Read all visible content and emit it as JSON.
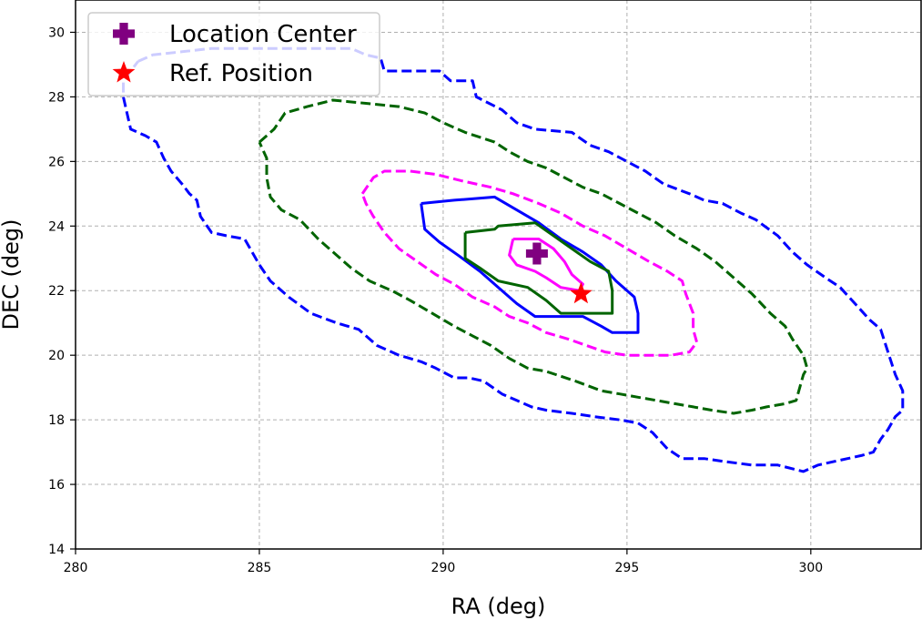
{
  "chart_data": {
    "type": "contour",
    "xlabel": "RA (deg)",
    "ylabel": "DEC (deg)",
    "xlim": [
      280,
      303
    ],
    "ylim": [
      14,
      31
    ],
    "xticks": [
      280,
      285,
      290,
      295,
      300
    ],
    "yticks": [
      14,
      16,
      18,
      20,
      22,
      24,
      26,
      28,
      30
    ],
    "grid": true,
    "legend_position": "upper-left",
    "legend": [
      {
        "label": "Location Center",
        "marker": "plus",
        "color": "#800080"
      },
      {
        "label": "Ref. Position",
        "marker": "star",
        "color": "#ff0000"
      }
    ],
    "points": [
      {
        "name": "Location Center",
        "x": 292.55,
        "y": 23.15,
        "marker": "plus",
        "color": "#800080"
      },
      {
        "name": "Ref. Position",
        "x": 293.75,
        "y": 21.9,
        "marker": "star",
        "color": "#ff0000"
      }
    ],
    "contours": [
      {
        "color": "#0000ff",
        "style": "dashed",
        "points": [
          [
            281.7,
            29.1
          ],
          [
            282.1,
            29.3
          ],
          [
            282.9,
            29.4
          ],
          [
            283.7,
            29.5
          ],
          [
            284.6,
            29.5
          ],
          [
            285.5,
            29.5
          ],
          [
            286.6,
            29.5
          ],
          [
            287.5,
            29.5
          ],
          [
            287.9,
            29.3
          ],
          [
            288.3,
            29.2
          ],
          [
            288.4,
            28.8
          ],
          [
            289.3,
            28.8
          ],
          [
            289.9,
            28.8
          ],
          [
            290.2,
            28.5
          ],
          [
            290.8,
            28.5
          ],
          [
            290.9,
            28.0
          ],
          [
            291.6,
            27.6
          ],
          [
            292.0,
            27.2
          ],
          [
            292.5,
            27.0
          ],
          [
            293.5,
            26.9
          ],
          [
            294.0,
            26.5
          ],
          [
            294.5,
            26.3
          ],
          [
            295.0,
            26.0
          ],
          [
            295.5,
            25.7
          ],
          [
            296.0,
            25.3
          ],
          [
            296.7,
            25.0
          ],
          [
            297.1,
            24.8
          ],
          [
            297.6,
            24.7
          ],
          [
            298.1,
            24.4
          ],
          [
            298.5,
            24.2
          ],
          [
            299.1,
            23.7
          ],
          [
            299.5,
            23.2
          ],
          [
            299.9,
            22.8
          ],
          [
            300.4,
            22.4
          ],
          [
            300.8,
            22.1
          ],
          [
            301.2,
            21.6
          ],
          [
            301.6,
            21.1
          ],
          [
            301.9,
            20.8
          ],
          [
            302.1,
            20.1
          ],
          [
            302.3,
            19.4
          ],
          [
            302.5,
            18.9
          ],
          [
            302.5,
            18.3
          ],
          [
            302.3,
            18.1
          ],
          [
            302.1,
            17.7
          ],
          [
            301.9,
            17.4
          ],
          [
            301.7,
            17.0
          ],
          [
            301.4,
            16.9
          ],
          [
            301.0,
            16.8
          ],
          [
            300.6,
            16.7
          ],
          [
            300.2,
            16.6
          ],
          [
            299.8,
            16.4
          ],
          [
            299.1,
            16.6
          ],
          [
            298.4,
            16.6
          ],
          [
            297.7,
            16.7
          ],
          [
            297.1,
            16.8
          ],
          [
            296.5,
            16.8
          ],
          [
            296.1,
            17.1
          ],
          [
            295.7,
            17.6
          ],
          [
            295.3,
            17.9
          ],
          [
            294.8,
            18.0
          ],
          [
            294.1,
            18.1
          ],
          [
            293.5,
            18.2
          ],
          [
            292.8,
            18.3
          ],
          [
            292.4,
            18.4
          ],
          [
            292.0,
            18.6
          ],
          [
            291.6,
            18.8
          ],
          [
            291.1,
            19.2
          ],
          [
            290.7,
            19.3
          ],
          [
            290.3,
            19.3
          ],
          [
            289.8,
            19.6
          ],
          [
            289.4,
            19.8
          ],
          [
            288.8,
            20.0
          ],
          [
            288.2,
            20.3
          ],
          [
            287.7,
            20.8
          ],
          [
            287.1,
            21.0
          ],
          [
            286.4,
            21.3
          ],
          [
            285.8,
            21.8
          ],
          [
            285.3,
            22.3
          ],
          [
            285.0,
            22.8
          ],
          [
            284.8,
            23.2
          ],
          [
            284.6,
            23.6
          ],
          [
            284.1,
            23.7
          ],
          [
            283.7,
            23.8
          ],
          [
            283.4,
            24.3
          ],
          [
            283.3,
            24.8
          ],
          [
            283.1,
            25.0
          ],
          [
            282.9,
            25.3
          ],
          [
            282.6,
            25.7
          ],
          [
            282.4,
            26.1
          ],
          [
            282.2,
            26.6
          ],
          [
            281.9,
            26.8
          ],
          [
            281.5,
            27.0
          ],
          [
            281.4,
            27.5
          ],
          [
            281.3,
            28.0
          ],
          [
            281.3,
            28.5
          ],
          [
            281.5,
            28.8
          ],
          [
            281.7,
            29.1
          ]
        ]
      },
      {
        "color": "#006400",
        "style": "dashed",
        "points": [
          [
            285.0,
            26.6
          ],
          [
            285.4,
            27.0
          ],
          [
            285.7,
            27.5
          ],
          [
            286.3,
            27.7
          ],
          [
            287.0,
            27.9
          ],
          [
            287.9,
            27.8
          ],
          [
            288.8,
            27.7
          ],
          [
            289.5,
            27.5
          ],
          [
            290.0,
            27.2
          ],
          [
            290.6,
            26.9
          ],
          [
            291.4,
            26.6
          ],
          [
            291.8,
            26.3
          ],
          [
            292.3,
            26.0
          ],
          [
            292.8,
            25.8
          ],
          [
            293.3,
            25.5
          ],
          [
            293.8,
            25.2
          ],
          [
            294.3,
            25.0
          ],
          [
            294.8,
            24.7
          ],
          [
            295.3,
            24.4
          ],
          [
            295.8,
            24.1
          ],
          [
            296.3,
            23.7
          ],
          [
            296.9,
            23.3
          ],
          [
            297.4,
            22.9
          ],
          [
            297.9,
            22.4
          ],
          [
            298.4,
            21.9
          ],
          [
            298.9,
            21.3
          ],
          [
            299.3,
            20.9
          ],
          [
            299.5,
            20.5
          ],
          [
            299.8,
            20.0
          ],
          [
            299.9,
            19.6
          ],
          [
            299.8,
            19.4
          ],
          [
            299.6,
            18.6
          ],
          [
            299.3,
            18.5
          ],
          [
            298.8,
            18.4
          ],
          [
            298.4,
            18.3
          ],
          [
            297.9,
            18.2
          ],
          [
            297.3,
            18.3
          ],
          [
            296.8,
            18.4
          ],
          [
            296.3,
            18.5
          ],
          [
            295.8,
            18.6
          ],
          [
            295.3,
            18.7
          ],
          [
            294.8,
            18.8
          ],
          [
            294.3,
            18.9
          ],
          [
            293.6,
            19.2
          ],
          [
            292.8,
            19.5
          ],
          [
            292.3,
            19.6
          ],
          [
            291.8,
            19.9
          ],
          [
            291.3,
            20.3
          ],
          [
            290.8,
            20.6
          ],
          [
            290.3,
            20.9
          ],
          [
            289.7,
            21.3
          ],
          [
            289.1,
            21.7
          ],
          [
            288.6,
            22.0
          ],
          [
            288.0,
            22.3
          ],
          [
            287.5,
            22.7
          ],
          [
            287.1,
            23.1
          ],
          [
            286.6,
            23.6
          ],
          [
            286.1,
            24.2
          ],
          [
            285.6,
            24.5
          ],
          [
            285.3,
            24.9
          ],
          [
            285.2,
            25.5
          ],
          [
            285.2,
            26.1
          ],
          [
            285.0,
            26.6
          ]
        ]
      },
      {
        "color": "#ff00ff",
        "style": "dashed",
        "points": [
          [
            287.8,
            25.0
          ],
          [
            288.1,
            25.5
          ],
          [
            288.4,
            25.7
          ],
          [
            289.1,
            25.7
          ],
          [
            289.8,
            25.6
          ],
          [
            290.5,
            25.4
          ],
          [
            291.3,
            25.2
          ],
          [
            291.9,
            25.0
          ],
          [
            292.6,
            24.7
          ],
          [
            293.2,
            24.4
          ],
          [
            293.8,
            24.0
          ],
          [
            294.4,
            23.7
          ],
          [
            295.0,
            23.3
          ],
          [
            295.6,
            22.9
          ],
          [
            296.1,
            22.6
          ],
          [
            296.5,
            22.3
          ],
          [
            296.6,
            21.9
          ],
          [
            296.7,
            21.6
          ],
          [
            296.8,
            21.3
          ],
          [
            296.8,
            20.8
          ],
          [
            296.9,
            20.4
          ],
          [
            296.7,
            20.1
          ],
          [
            296.2,
            20.0
          ],
          [
            295.6,
            20.0
          ],
          [
            295.0,
            20.0
          ],
          [
            294.4,
            20.1
          ],
          [
            293.9,
            20.3
          ],
          [
            293.4,
            20.5
          ],
          [
            292.8,
            20.7
          ],
          [
            292.3,
            21.0
          ],
          [
            291.8,
            21.2
          ],
          [
            291.4,
            21.5
          ],
          [
            290.8,
            21.8
          ],
          [
            290.3,
            22.2
          ],
          [
            289.8,
            22.5
          ],
          [
            289.3,
            22.9
          ],
          [
            288.8,
            23.3
          ],
          [
            288.4,
            23.8
          ],
          [
            288.1,
            24.3
          ],
          [
            287.9,
            24.7
          ],
          [
            287.8,
            25.0
          ]
        ]
      },
      {
        "color": "#0000ff",
        "style": "solid",
        "points": [
          [
            289.4,
            24.7
          ],
          [
            290.3,
            24.8
          ],
          [
            291.4,
            24.9
          ],
          [
            292.0,
            24.5
          ],
          [
            292.6,
            24.1
          ],
          [
            293.2,
            23.6
          ],
          [
            293.8,
            23.2
          ],
          [
            294.3,
            22.8
          ],
          [
            294.7,
            22.3
          ],
          [
            295.2,
            21.8
          ],
          [
            295.3,
            21.3
          ],
          [
            295.3,
            20.7
          ],
          [
            294.6,
            20.7
          ],
          [
            294.3,
            20.9
          ],
          [
            293.8,
            21.2
          ],
          [
            293.0,
            21.2
          ],
          [
            292.5,
            21.2
          ],
          [
            292.0,
            21.6
          ],
          [
            291.5,
            22.1
          ],
          [
            291.0,
            22.6
          ],
          [
            290.4,
            23.1
          ],
          [
            289.9,
            23.5
          ],
          [
            289.5,
            23.9
          ],
          [
            289.4,
            24.7
          ]
        ]
      },
      {
        "color": "#006400",
        "style": "solid",
        "points": [
          [
            290.6,
            23.8
          ],
          [
            291.4,
            23.9
          ],
          [
            291.5,
            24.0
          ],
          [
            292.5,
            24.1
          ],
          [
            293.0,
            23.7
          ],
          [
            293.5,
            23.3
          ],
          [
            294.0,
            22.9
          ],
          [
            294.5,
            22.6
          ],
          [
            294.6,
            22.0
          ],
          [
            294.6,
            21.3
          ],
          [
            294.0,
            21.3
          ],
          [
            293.2,
            21.3
          ],
          [
            292.8,
            21.7
          ],
          [
            292.3,
            22.1
          ],
          [
            291.5,
            22.3
          ],
          [
            291.0,
            22.7
          ],
          [
            290.6,
            23.0
          ],
          [
            290.6,
            23.8
          ]
        ]
      },
      {
        "color": "#ff00ff",
        "style": "solid",
        "points": [
          [
            291.9,
            23.6
          ],
          [
            292.6,
            23.6
          ],
          [
            293.0,
            23.3
          ],
          [
            293.3,
            22.9
          ],
          [
            293.5,
            22.5
          ],
          [
            293.8,
            22.2
          ],
          [
            293.7,
            22.0
          ],
          [
            293.2,
            22.1
          ],
          [
            292.8,
            22.4
          ],
          [
            292.5,
            22.6
          ],
          [
            292.0,
            22.8
          ],
          [
            291.8,
            23.1
          ],
          [
            291.9,
            23.6
          ]
        ]
      }
    ]
  }
}
